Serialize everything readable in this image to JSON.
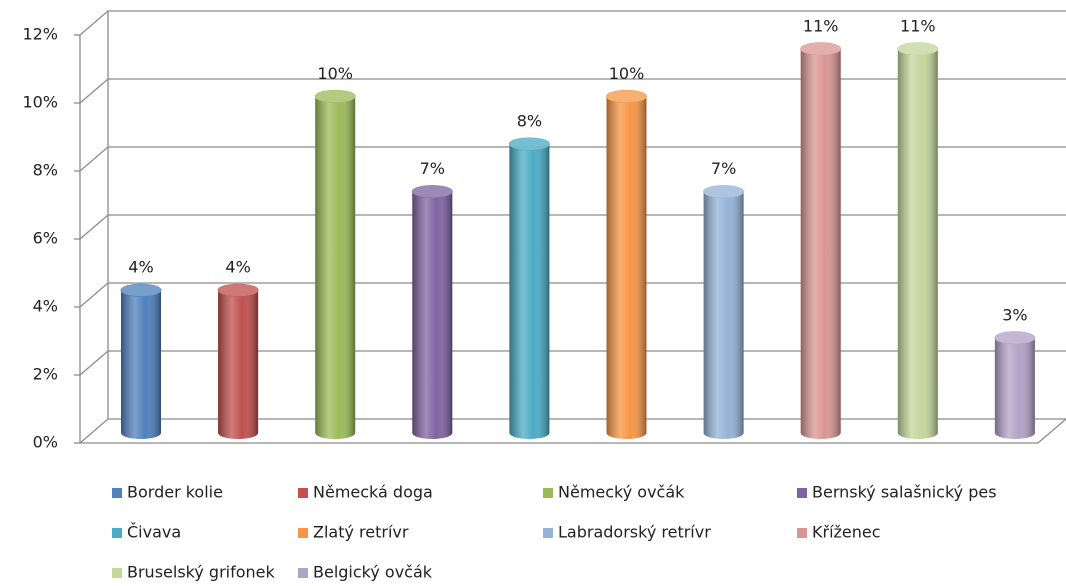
{
  "chart_data": {
    "type": "bar",
    "categories": [
      "Border kolie",
      "Německá doga",
      "Německý ovčák",
      "Bernský salašnický pes",
      "Čivava",
      "Zlatý retrívr",
      "Labradorský retrívr",
      "Kříženec",
      "Bruselský grifonek",
      "Belgický ovčák"
    ],
    "values": [
      4.2,
      4.2,
      9.9,
      7.1,
      8.5,
      9.9,
      7.1,
      11.3,
      11.3,
      2.8
    ],
    "value_labels": [
      "4%",
      "4%",
      "10%",
      "7%",
      "8%",
      "10%",
      "7%",
      "11%",
      "11%",
      "3%"
    ],
    "colors": [
      "#4f81bd",
      "#c0504d",
      "#9bbb59",
      "#8064a2",
      "#4bacc6",
      "#f79646",
      "#95b3d7",
      "#d99694",
      "#c3d69b",
      "#b3a2c7"
    ],
    "ylim": [
      0,
      12
    ],
    "yticks": [
      {
        "value": 0,
        "label": "0%"
      },
      {
        "value": 2,
        "label": "2%"
      },
      {
        "value": 4,
        "label": "4%"
      },
      {
        "value": 6,
        "label": "6%"
      },
      {
        "value": 8,
        "label": "8%"
      },
      {
        "value": 10,
        "label": "10%"
      },
      {
        "value": 12,
        "label": "12%"
      }
    ],
    "grid": true,
    "legend": "bottom"
  }
}
